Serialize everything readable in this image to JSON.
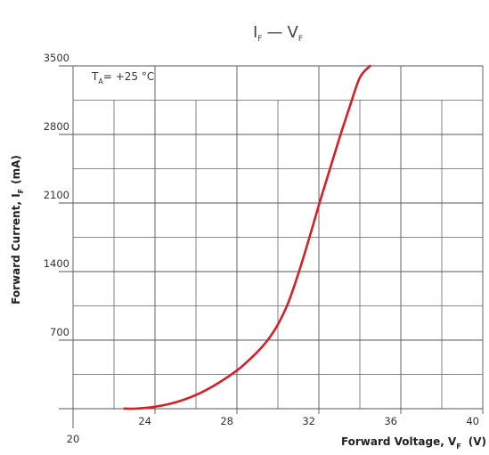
{
  "chart_data": {
    "type": "line",
    "title": {
      "main_a": "I",
      "sub_a": "F",
      "dash": "—",
      "main_b": "V",
      "sub_b": "F"
    },
    "xlabel": {
      "text": "Forward Voltage, V",
      "sub": "F",
      "unit": "(V)"
    },
    "ylabel": {
      "text": "Forward Current,  I",
      "sub": "F",
      "unit": "(mA)"
    },
    "annotation": {
      "prefix": "T",
      "sub": "A",
      "text": "= +25 °C"
    },
    "xlim": [
      20,
      40
    ],
    "ylim": [
      0,
      3500
    ],
    "x_ticks": [
      {
        "value": 20,
        "label": "20"
      },
      {
        "value": 24,
        "label": "24"
      },
      {
        "value": 28,
        "label": "28"
      },
      {
        "value": 32,
        "label": "32"
      },
      {
        "value": 36,
        "label": "36"
      },
      {
        "value": 40,
        "label": "40"
      }
    ],
    "x_minor_gridlines": [
      22,
      26,
      30,
      34,
      38
    ],
    "y_ticks": [
      {
        "value": 700,
        "label": "700"
      },
      {
        "value": 1400,
        "label": "1400"
      },
      {
        "value": 2100,
        "label": "2100"
      },
      {
        "value": 2800,
        "label": "2800"
      },
      {
        "value": 3500,
        "label": "3500"
      }
    ],
    "y_minor_gridlines": [
      350,
      1050,
      1750,
      2450,
      3150
    ],
    "grid": true,
    "line_color": "#d42027",
    "series": [
      {
        "x": [
          22.5,
          23.0,
          24.0,
          25.0,
          26.0,
          27.0,
          28.0,
          28.5,
          29.0,
          29.5,
          30.0,
          30.5,
          31.0,
          31.5,
          32.0,
          32.5,
          33.0,
          33.5,
          34.0,
          34.5
        ],
        "y": [
          2,
          0,
          20,
          65,
          140,
          250,
          390,
          480,
          580,
          700,
          860,
          1080,
          1380,
          1720,
          2080,
          2420,
          2760,
          3080,
          3380,
          3690
        ]
      }
    ]
  }
}
